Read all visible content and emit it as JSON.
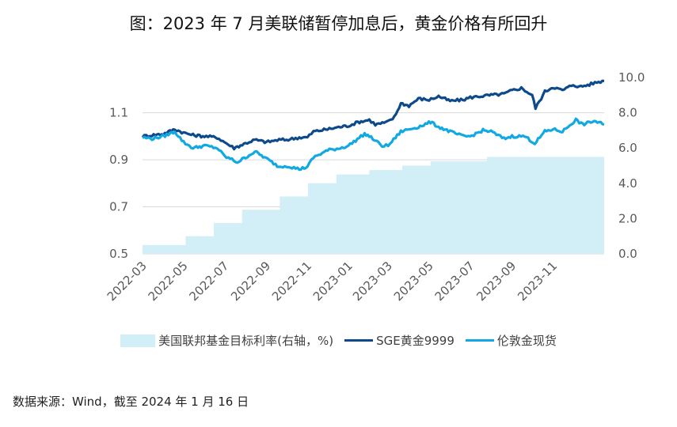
{
  "title": "图：2023 年 7 月美联储暂停加息后，黄金价格有所回升",
  "source": "数据来源：Wind，截至 2024 年 1 月 16 日",
  "chart_data": {
    "type": "line",
    "x_range": [
      "2022-03-01",
      "2024-01-16"
    ],
    "x_ticks": [
      "2022-03",
      "2022-05",
      "2022-07",
      "2022-09",
      "2022-11",
      "2023-01",
      "2023-03",
      "2023-05",
      "2023-07",
      "2023-09",
      "2023-11"
    ],
    "y_left": {
      "ylim": [
        0.5,
        1.25
      ],
      "ticks": [
        "0.5",
        "0.7",
        "0.9",
        "1.1"
      ]
    },
    "y_right": {
      "ylim": [
        0.0,
        10.0
      ],
      "ticks": [
        "0.0",
        "2.0",
        "4.0",
        "6.0",
        "8.0",
        "10.0"
      ]
    },
    "grid": true,
    "legend_placement": "bottom",
    "series": [
      {
        "name": "美国联邦基金目标利率(右轴，%)",
        "type": "area",
        "axis": "right",
        "color": "#d2eef6",
        "points": [
          [
            "2022-03-01",
            0.5
          ],
          [
            "2022-05-04",
            1.0
          ],
          [
            "2022-06-15",
            1.75
          ],
          [
            "2022-07-27",
            2.5
          ],
          [
            "2022-09-21",
            3.25
          ],
          [
            "2022-11-02",
            4.0
          ],
          [
            "2022-12-14",
            4.5
          ],
          [
            "2023-02-01",
            4.75
          ],
          [
            "2023-03-22",
            5.0
          ],
          [
            "2023-05-03",
            5.25
          ],
          [
            "2023-07-26",
            5.5
          ],
          [
            "2024-01-16",
            5.5
          ]
        ]
      },
      {
        "name": "SGE黄金9999",
        "type": "line",
        "axis": "left",
        "color": "#0d4a8c",
        "points": [
          [
            "2022-03-01",
            1.0
          ],
          [
            "2022-03-15",
            1.005
          ],
          [
            "2022-04-01",
            1.01
          ],
          [
            "2022-04-18",
            1.03
          ],
          [
            "2022-05-01",
            1.015
          ],
          [
            "2022-05-15",
            1.005
          ],
          [
            "2022-06-01",
            1.0
          ],
          [
            "2022-06-20",
            0.995
          ],
          [
            "2022-07-01",
            0.975
          ],
          [
            "2022-07-15",
            0.95
          ],
          [
            "2022-08-01",
            0.97
          ],
          [
            "2022-08-15",
            0.985
          ],
          [
            "2022-09-01",
            0.975
          ],
          [
            "2022-09-20",
            0.985
          ],
          [
            "2022-10-01",
            0.985
          ],
          [
            "2022-10-20",
            0.995
          ],
          [
            "2022-11-01",
            0.995
          ],
          [
            "2022-11-10",
            1.02
          ],
          [
            "2022-12-01",
            1.03
          ],
          [
            "2022-12-20",
            1.04
          ],
          [
            "2023-01-01",
            1.045
          ],
          [
            "2023-01-15",
            1.06
          ],
          [
            "2023-02-01",
            1.07
          ],
          [
            "2023-02-10",
            1.05
          ],
          [
            "2023-02-28",
            1.06
          ],
          [
            "2023-03-10",
            1.08
          ],
          [
            "2023-03-20",
            1.14
          ],
          [
            "2023-04-01",
            1.13
          ],
          [
            "2023-04-15",
            1.16
          ],
          [
            "2023-05-01",
            1.155
          ],
          [
            "2023-05-15",
            1.17
          ],
          [
            "2023-06-01",
            1.15
          ],
          [
            "2023-06-20",
            1.155
          ],
          [
            "2023-07-01",
            1.165
          ],
          [
            "2023-07-15",
            1.17
          ],
          [
            "2023-08-01",
            1.175
          ],
          [
            "2023-08-20",
            1.18
          ],
          [
            "2023-09-01",
            1.195
          ],
          [
            "2023-09-15",
            1.205
          ],
          [
            "2023-10-01",
            1.175
          ],
          [
            "2023-10-06",
            1.12
          ],
          [
            "2023-10-20",
            1.19
          ],
          [
            "2023-11-01",
            1.21
          ],
          [
            "2023-11-15",
            1.195
          ],
          [
            "2023-12-01",
            1.22
          ],
          [
            "2023-12-10",
            1.21
          ],
          [
            "2023-12-25",
            1.22
          ],
          [
            "2024-01-05",
            1.23
          ],
          [
            "2024-01-16",
            1.235
          ]
        ]
      },
      {
        "name": "伦敦金现货",
        "type": "line",
        "axis": "left",
        "color": "#12a9e3",
        "points": [
          [
            "2022-03-01",
            0.995
          ],
          [
            "2022-03-15",
            0.99
          ],
          [
            "2022-04-01",
            1.0
          ],
          [
            "2022-04-18",
            1.02
          ],
          [
            "2022-05-01",
            0.975
          ],
          [
            "2022-05-15",
            0.95
          ],
          [
            "2022-06-01",
            0.96
          ],
          [
            "2022-06-20",
            0.95
          ],
          [
            "2022-07-01",
            0.915
          ],
          [
            "2022-07-20",
            0.89
          ],
          [
            "2022-08-01",
            0.91
          ],
          [
            "2022-08-15",
            0.935
          ],
          [
            "2022-09-01",
            0.905
          ],
          [
            "2022-09-20",
            0.87
          ],
          [
            "2022-10-01",
            0.875
          ],
          [
            "2022-10-20",
            0.86
          ],
          [
            "2022-11-01",
            0.87
          ],
          [
            "2022-11-10",
            0.91
          ],
          [
            "2022-12-01",
            0.94
          ],
          [
            "2022-12-20",
            0.95
          ],
          [
            "2023-01-01",
            0.96
          ],
          [
            "2023-01-25",
            1.01
          ],
          [
            "2023-02-01",
            1.0
          ],
          [
            "2023-02-20",
            0.96
          ],
          [
            "2023-03-01",
            0.96
          ],
          [
            "2023-03-20",
            1.02
          ],
          [
            "2023-04-01",
            1.03
          ],
          [
            "2023-04-15",
            1.04
          ],
          [
            "2023-05-03",
            1.06
          ],
          [
            "2023-05-15",
            1.04
          ],
          [
            "2023-06-01",
            1.02
          ],
          [
            "2023-06-20",
            1.0
          ],
          [
            "2023-07-01",
            1.0
          ],
          [
            "2023-07-20",
            1.025
          ],
          [
            "2023-08-01",
            1.02
          ],
          [
            "2023-08-20",
            0.99
          ],
          [
            "2023-09-01",
            1.0
          ],
          [
            "2023-09-20",
            1.0
          ],
          [
            "2023-10-05",
            0.97
          ],
          [
            "2023-10-20",
            1.02
          ],
          [
            "2023-11-01",
            1.03
          ],
          [
            "2023-11-15",
            1.02
          ],
          [
            "2023-12-01",
            1.06
          ],
          [
            "2023-12-05",
            1.07
          ],
          [
            "2023-12-15",
            1.05
          ],
          [
            "2024-01-01",
            1.065
          ],
          [
            "2024-01-16",
            1.05
          ]
        ]
      }
    ]
  }
}
